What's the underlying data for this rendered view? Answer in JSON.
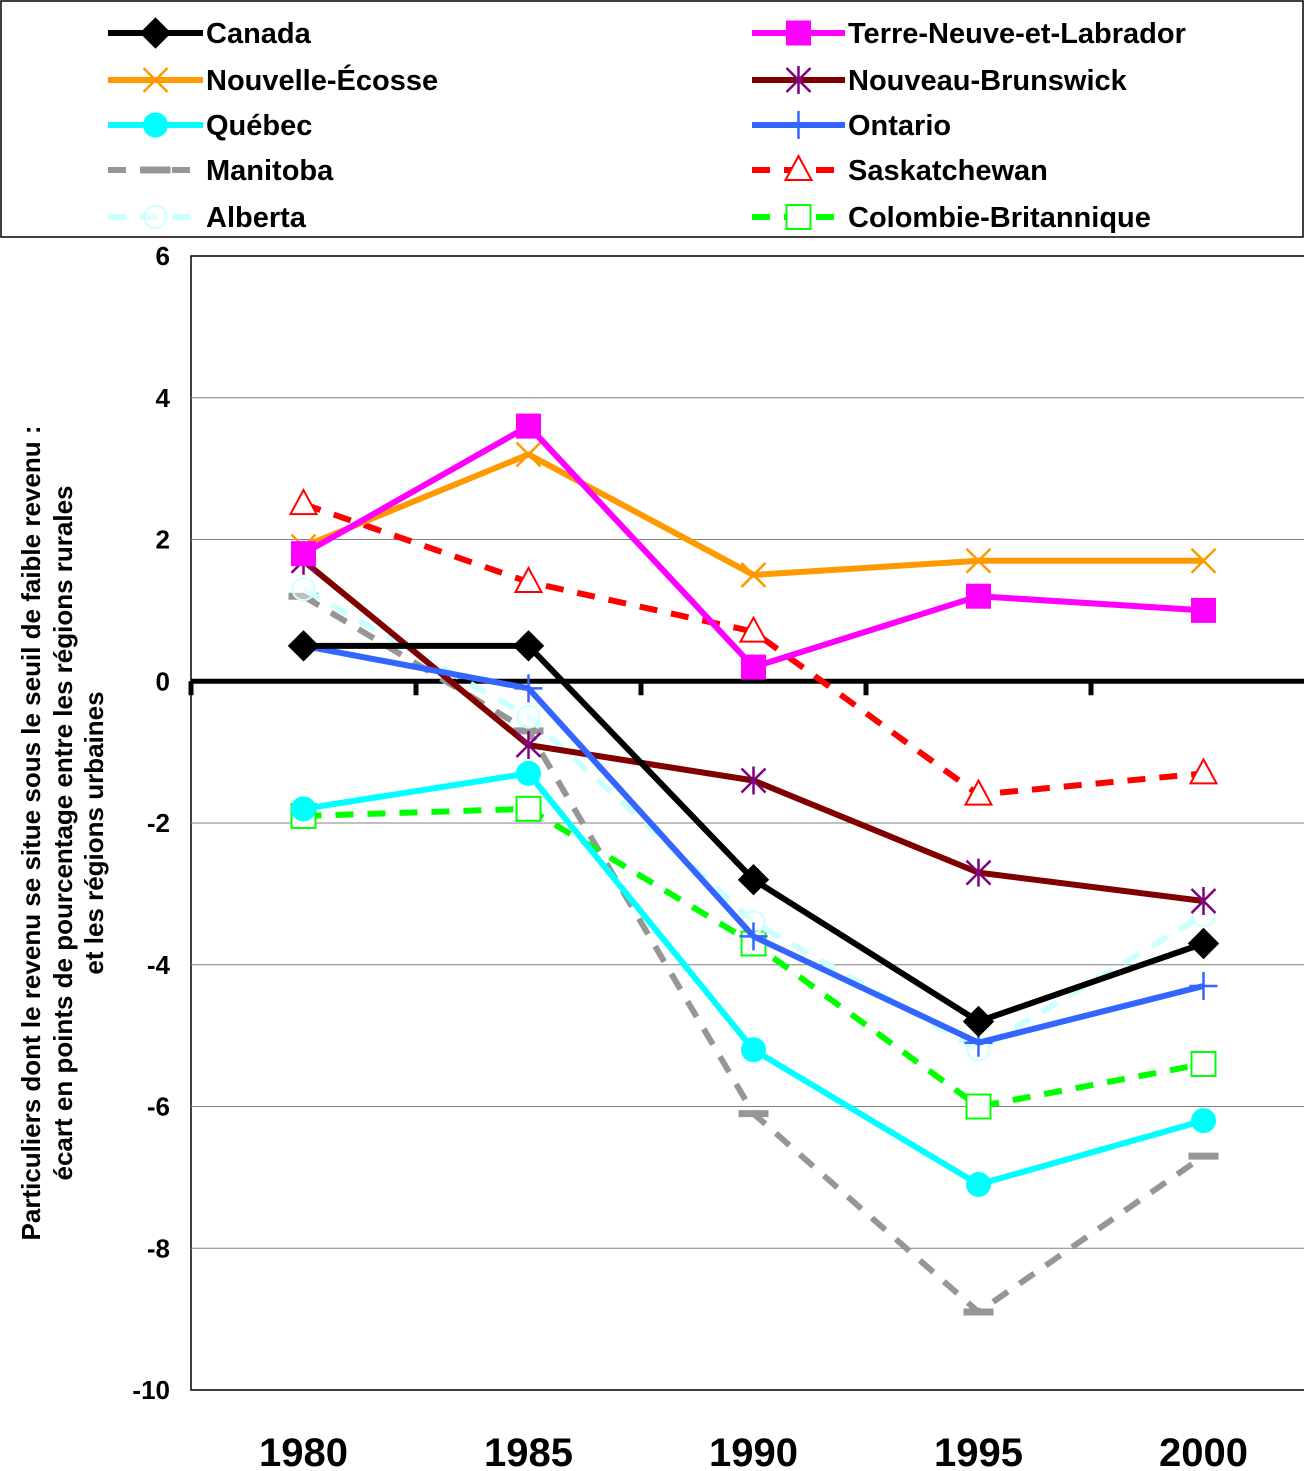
{
  "chart_data": {
    "type": "line",
    "x": [
      1980,
      1985,
      1990,
      1995,
      2000
    ],
    "x_tick_labels": [
      "1980",
      "1985",
      "1990",
      "1995",
      "2000"
    ],
    "ylim": [
      -10,
      6
    ],
    "y_ticks": [
      6,
      4,
      2,
      0,
      -2,
      -4,
      -6,
      -8,
      -10
    ],
    "y_tick_labels": [
      "6",
      "4",
      "2",
      "0",
      "-2",
      "-4",
      "-6",
      "-8",
      "-10"
    ],
    "ylabel_lines": [
      "Particuliers dont le revenu se situe sous le seuil de faible revenu :",
      "écart en points de pourcentage entre les régions rurales",
      "et les régions urbaines"
    ],
    "grid": "horizontal",
    "legend_position": "top",
    "series": [
      {
        "name": "Canada",
        "color": "#000000",
        "dash": "solid",
        "marker": "diamond-filled",
        "values": [
          0.5,
          0.5,
          -2.8,
          -4.8,
          -3.7
        ]
      },
      {
        "name": "Terre-Neuve-et-Labrador",
        "color": "#ff00ff",
        "dash": "solid",
        "marker": "square-filled",
        "values": [
          1.8,
          3.6,
          0.2,
          1.2,
          1.0
        ]
      },
      {
        "name": "Nouvelle-Écosse",
        "color": "#ff9900",
        "dash": "solid",
        "marker": "x",
        "values": [
          1.9,
          3.2,
          1.5,
          1.7,
          1.7
        ]
      },
      {
        "name": "Nouveau-Brunswick",
        "color": "#800000",
        "dash": "solid",
        "marker": "asterisk-purple",
        "values": [
          1.7,
          -0.9,
          -1.4,
          -2.7,
          -3.1
        ]
      },
      {
        "name": "Québec",
        "color": "#00ffff",
        "dash": "solid",
        "marker": "circle-filled",
        "values": [
          -1.8,
          -1.3,
          -5.2,
          -7.1,
          -6.2
        ]
      },
      {
        "name": "Ontario",
        "color": "#3366ff",
        "dash": "solid",
        "marker": "plus",
        "values": [
          0.5,
          -0.1,
          -3.6,
          -5.1,
          -4.3
        ]
      },
      {
        "name": "Manitoba",
        "color": "#969696",
        "dash": "dashed",
        "marker": "dash",
        "values": [
          1.2,
          -0.7,
          -6.1,
          -8.9,
          -6.7
        ]
      },
      {
        "name": "Saskatchewan",
        "color": "#ff0000",
        "dash": "dashed",
        "marker": "triangle-open",
        "values": [
          2.5,
          1.4,
          0.7,
          -1.6,
          -1.3
        ]
      },
      {
        "name": "Alberta",
        "color": "#ccffff",
        "dash": "dashed",
        "marker": "circle-open",
        "values": [
          1.3,
          -0.5,
          -3.4,
          -5.2,
          -3.3
        ]
      },
      {
        "name": "Colombie-Britannique",
        "color": "#00ff00",
        "dash": "dashed",
        "marker": "square-open",
        "values": [
          -1.9,
          -1.8,
          -3.7,
          -6.0,
          -5.4
        ]
      }
    ]
  }
}
